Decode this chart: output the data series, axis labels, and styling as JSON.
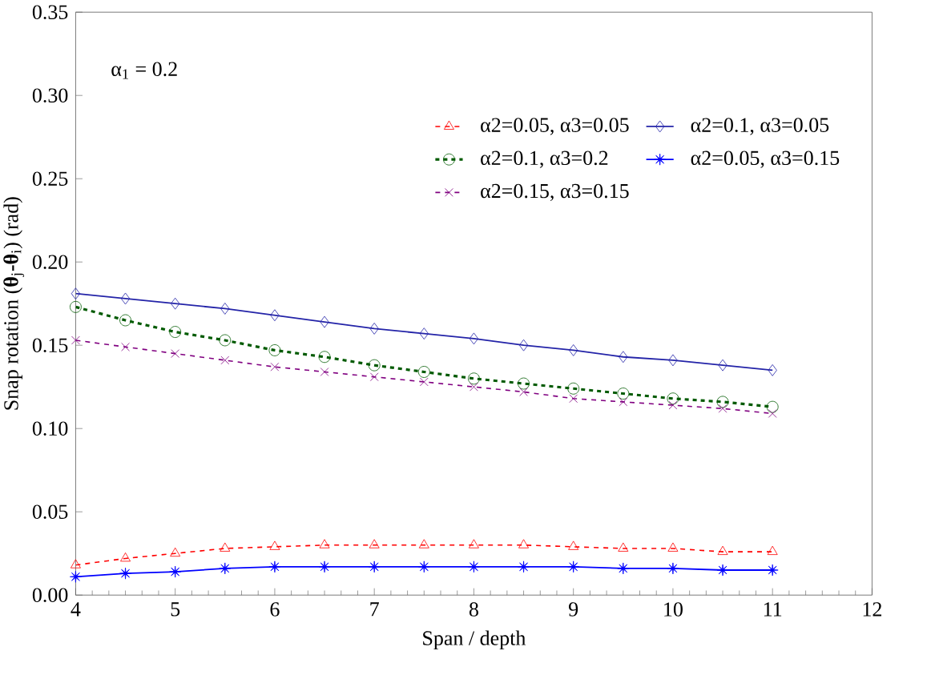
{
  "chart_data": {
    "type": "line",
    "xlabel": "Span / depth",
    "ylabel": "Snap rotation (**θ**$_{j}$**-θ**$_{i}$) (rad)",
    "annotations": [
      "α$_{1}$ = 0.2"
    ],
    "x": [
      4,
      4.5,
      5,
      5.5,
      6,
      6.5,
      7,
      7.5,
      8,
      8.5,
      9,
      9.5,
      10,
      10.5,
      11
    ],
    "xlim": [
      4,
      12
    ],
    "xticks": [
      4,
      5,
      6,
      7,
      8,
      9,
      10,
      11,
      12
    ],
    "ylim": [
      0,
      0.35
    ],
    "yticks": [
      {
        "value": 0,
        "label": "0.00"
      },
      {
        "value": 0.05,
        "label": "0.05"
      },
      {
        "value": 0.1,
        "label": "0.10"
      },
      {
        "value": 0.15,
        "label": "0.15"
      },
      {
        "value": 0.2,
        "label": "0.20"
      },
      {
        "value": 0.25,
        "label": "0.25"
      },
      {
        "value": 0.3,
        "label": "0.30"
      },
      {
        "value": 0.35,
        "label": "0.35"
      }
    ],
    "legend": "top right",
    "grid": false,
    "series": [
      {
        "name": "α2=0.05, α3=0.05",
        "color": "#ff0000",
        "marker": "triangle",
        "line_style": "dashed",
        "values": [
          0.018,
          0.022,
          0.025,
          0.028,
          0.029,
          0.03,
          0.03,
          0.03,
          0.03,
          0.03,
          0.029,
          0.028,
          0.028,
          0.026,
          0.026
        ]
      },
      {
        "name": "α2=0.1, α3=0.05",
        "color": "#2424a8",
        "marker": "diamond",
        "line_style": "solid",
        "values": [
          0.181,
          0.178,
          0.175,
          0.172,
          0.168,
          0.164,
          0.16,
          0.157,
          0.154,
          0.15,
          0.147,
          0.143,
          0.141,
          0.138,
          0.135
        ]
      },
      {
        "name": "α2=0.1, α3=0.2",
        "color": "#005a00",
        "marker": "circle",
        "line_style": "dotted",
        "values": [
          0.173,
          0.165,
          0.158,
          0.153,
          0.147,
          0.143,
          0.138,
          0.134,
          0.13,
          0.127,
          0.124,
          0.121,
          0.118,
          0.116,
          0.113
        ]
      },
      {
        "name": "α2=0.05, α3=0.15",
        "color": "#0000ff",
        "marker": "star",
        "line_style": "solid",
        "values": [
          0.011,
          0.013,
          0.014,
          0.016,
          0.017,
          0.017,
          0.017,
          0.017,
          0.017,
          0.017,
          0.017,
          0.016,
          0.016,
          0.015,
          0.015
        ]
      },
      {
        "name": "α2=0.15, α3=0.15",
        "color": "#800080",
        "marker": "cross",
        "line_style": "dashed",
        "values": [
          0.153,
          0.149,
          0.145,
          0.141,
          0.137,
          0.134,
          0.131,
          0.128,
          0.125,
          0.122,
          0.118,
          0.116,
          0.114,
          0.112,
          0.109
        ]
      }
    ]
  }
}
